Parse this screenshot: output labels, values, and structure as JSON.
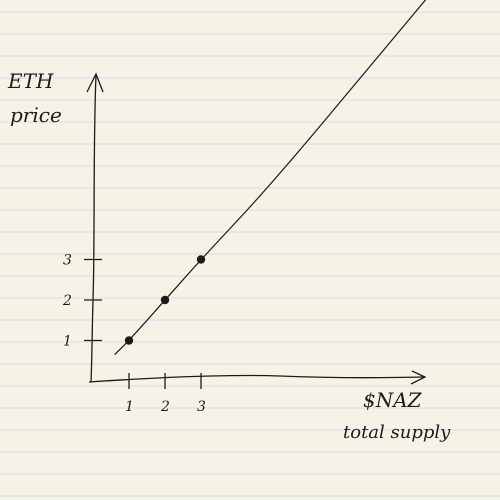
{
  "chart_data": {
    "type": "scatter",
    "title": "",
    "ylabel": [
      "ETH",
      "price"
    ],
    "xlabel": [
      "$NAZ",
      "total supply"
    ],
    "x_ticks": [
      1,
      2,
      3
    ],
    "y_ticks": [
      1,
      2,
      3
    ],
    "points": [
      {
        "x": 1,
        "y": 1
      },
      {
        "x": 2,
        "y": 2
      },
      {
        "x": 3,
        "y": 3
      }
    ],
    "trend_line": {
      "x": [
        0.6,
        1,
        2,
        3,
        5,
        8,
        11.3
      ],
      "y": [
        0.65,
        1,
        2,
        3,
        4.9,
        8.1,
        11.6
      ]
    },
    "xlim": [
      0,
      11.8
    ],
    "ylim": [
      0,
      11.5
    ],
    "grid": false,
    "colors": {
      "paper": "#f6f2e6",
      "rule": "#d6ddea",
      "ink": "#1b1b1b"
    }
  }
}
